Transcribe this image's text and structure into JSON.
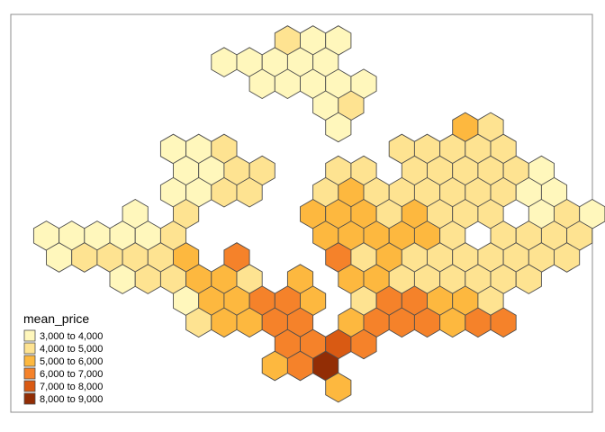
{
  "legend": {
    "title": "mean_price",
    "classes": [
      {
        "label": "3,000 to 4,000",
        "color": "#fff7bc"
      },
      {
        "label": "4,000 to 5,000",
        "color": "#fee391"
      },
      {
        "label": "5,000 to 6,000",
        "color": "#fdb83f"
      },
      {
        "label": "6,000 to 7,000",
        "color": "#f5822a"
      },
      {
        "label": "7,000 to 8,000",
        "color": "#d95a13"
      },
      {
        "label": "8,000 to 9,000",
        "color": "#922d05"
      }
    ]
  },
  "hex_rows": [
    {
      "row": 0,
      "cells": [
        [
          9,
          1
        ],
        [
          10,
          0
        ],
        [
          11,
          0
        ]
      ]
    },
    {
      "row": 1,
      "cells": [
        [
          7,
          0
        ],
        [
          8,
          0
        ],
        [
          9,
          0
        ],
        [
          10,
          0
        ],
        [
          11,
          0
        ]
      ]
    },
    {
      "row": 2,
      "cells": [
        [
          8,
          0
        ],
        [
          9,
          0
        ],
        [
          10,
          0
        ],
        [
          11,
          0
        ],
        [
          12,
          0
        ]
      ]
    },
    {
      "row": 3,
      "cells": [
        [
          11,
          0
        ],
        [
          12,
          1
        ]
      ]
    },
    {
      "row": 4,
      "cells": [
        [
          11,
          0
        ],
        [
          16,
          2
        ],
        [
          17,
          1
        ]
      ]
    },
    {
      "row": 5,
      "cells": [
        [
          5,
          0
        ],
        [
          6,
          0
        ],
        [
          7,
          1
        ],
        [
          14,
          1
        ],
        [
          15,
          1
        ],
        [
          16,
          1
        ],
        [
          17,
          1
        ],
        [
          18,
          1
        ]
      ]
    },
    {
      "row": 6,
      "cells": [
        [
          5,
          0
        ],
        [
          6,
          0
        ],
        [
          7,
          1
        ],
        [
          8,
          1
        ],
        [
          11,
          1
        ],
        [
          12,
          1
        ],
        [
          14,
          1
        ],
        [
          15,
          1
        ],
        [
          16,
          1
        ],
        [
          17,
          1
        ],
        [
          18,
          1
        ],
        [
          19,
          0
        ]
      ]
    },
    {
      "row": 7,
      "cells": [
        [
          5,
          0
        ],
        [
          6,
          0
        ],
        [
          7,
          1
        ],
        [
          8,
          1
        ],
        [
          11,
          1
        ],
        [
          12,
          2
        ],
        [
          13,
          1
        ],
        [
          14,
          1
        ],
        [
          15,
          1
        ],
        [
          16,
          1
        ],
        [
          17,
          1
        ],
        [
          18,
          1
        ],
        [
          19,
          0
        ],
        [
          20,
          0
        ]
      ]
    },
    {
      "row": 8,
      "cells": [
        [
          3,
          0
        ],
        [
          5,
          1
        ],
        [
          10,
          2
        ],
        [
          11,
          2
        ],
        [
          12,
          2
        ],
        [
          13,
          1
        ],
        [
          14,
          2
        ],
        [
          15,
          1
        ],
        [
          16,
          1
        ],
        [
          17,
          1
        ],
        [
          19,
          0
        ],
        [
          20,
          1
        ],
        [
          21,
          0
        ]
      ]
    },
    {
      "row": 9,
      "cells": [
        [
          0,
          0
        ],
        [
          1,
          0
        ],
        [
          2,
          0
        ],
        [
          3,
          0
        ],
        [
          4,
          0
        ],
        [
          5,
          1
        ],
        [
          11,
          2
        ],
        [
          12,
          2
        ],
        [
          13,
          2
        ],
        [
          14,
          2
        ],
        [
          15,
          2
        ],
        [
          16,
          1
        ],
        [
          18,
          1
        ],
        [
          19,
          1
        ],
        [
          20,
          1
        ],
        [
          21,
          1
        ]
      ]
    },
    {
      "row": 10,
      "cells": [
        [
          0,
          0
        ],
        [
          1,
          1
        ],
        [
          2,
          1
        ],
        [
          3,
          1
        ],
        [
          4,
          1
        ],
        [
          5,
          2
        ],
        [
          7,
          3
        ],
        [
          11,
          3
        ],
        [
          12,
          1
        ],
        [
          13,
          2
        ],
        [
          14,
          1
        ],
        [
          15,
          1
        ],
        [
          16,
          1
        ],
        [
          17,
          1
        ],
        [
          18,
          1
        ],
        [
          19,
          1
        ],
        [
          20,
          1
        ]
      ]
    },
    {
      "row": 11,
      "cells": [
        [
          3,
          0
        ],
        [
          4,
          1
        ],
        [
          5,
          1
        ],
        [
          6,
          2
        ],
        [
          7,
          2
        ],
        [
          8,
          1
        ],
        [
          10,
          2
        ],
        [
          12,
          2
        ],
        [
          13,
          2
        ],
        [
          14,
          1
        ],
        [
          15,
          1
        ],
        [
          16,
          1
        ],
        [
          17,
          1
        ],
        [
          18,
          1
        ],
        [
          19,
          1
        ]
      ]
    },
    {
      "row": 12,
      "cells": [
        [
          5,
          0
        ],
        [
          6,
          2
        ],
        [
          7,
          2
        ],
        [
          8,
          3
        ],
        [
          9,
          3
        ],
        [
          10,
          2
        ],
        [
          12,
          1
        ],
        [
          13,
          3
        ],
        [
          14,
          3
        ],
        [
          15,
          2
        ],
        [
          16,
          2
        ],
        [
          17,
          1
        ]
      ]
    },
    {
      "row": 13,
      "cells": [
        [
          6,
          1
        ],
        [
          7,
          2
        ],
        [
          8,
          2
        ],
        [
          9,
          3
        ],
        [
          10,
          3
        ],
        [
          12,
          2
        ],
        [
          13,
          3
        ],
        [
          14,
          3
        ],
        [
          15,
          3
        ],
        [
          16,
          2
        ],
        [
          17,
          3
        ],
        [
          18,
          3
        ]
      ]
    },
    {
      "row": 14,
      "cells": [
        [
          9,
          3
        ],
        [
          10,
          3
        ],
        [
          11,
          4
        ],
        [
          12,
          3
        ]
      ]
    },
    {
      "row": 15,
      "cells": [
        [
          9,
          2
        ],
        [
          10,
          3
        ],
        [
          11,
          5
        ]
      ]
    },
    {
      "row": 16,
      "cells": [
        [
          11,
          2
        ]
      ]
    }
  ]
}
